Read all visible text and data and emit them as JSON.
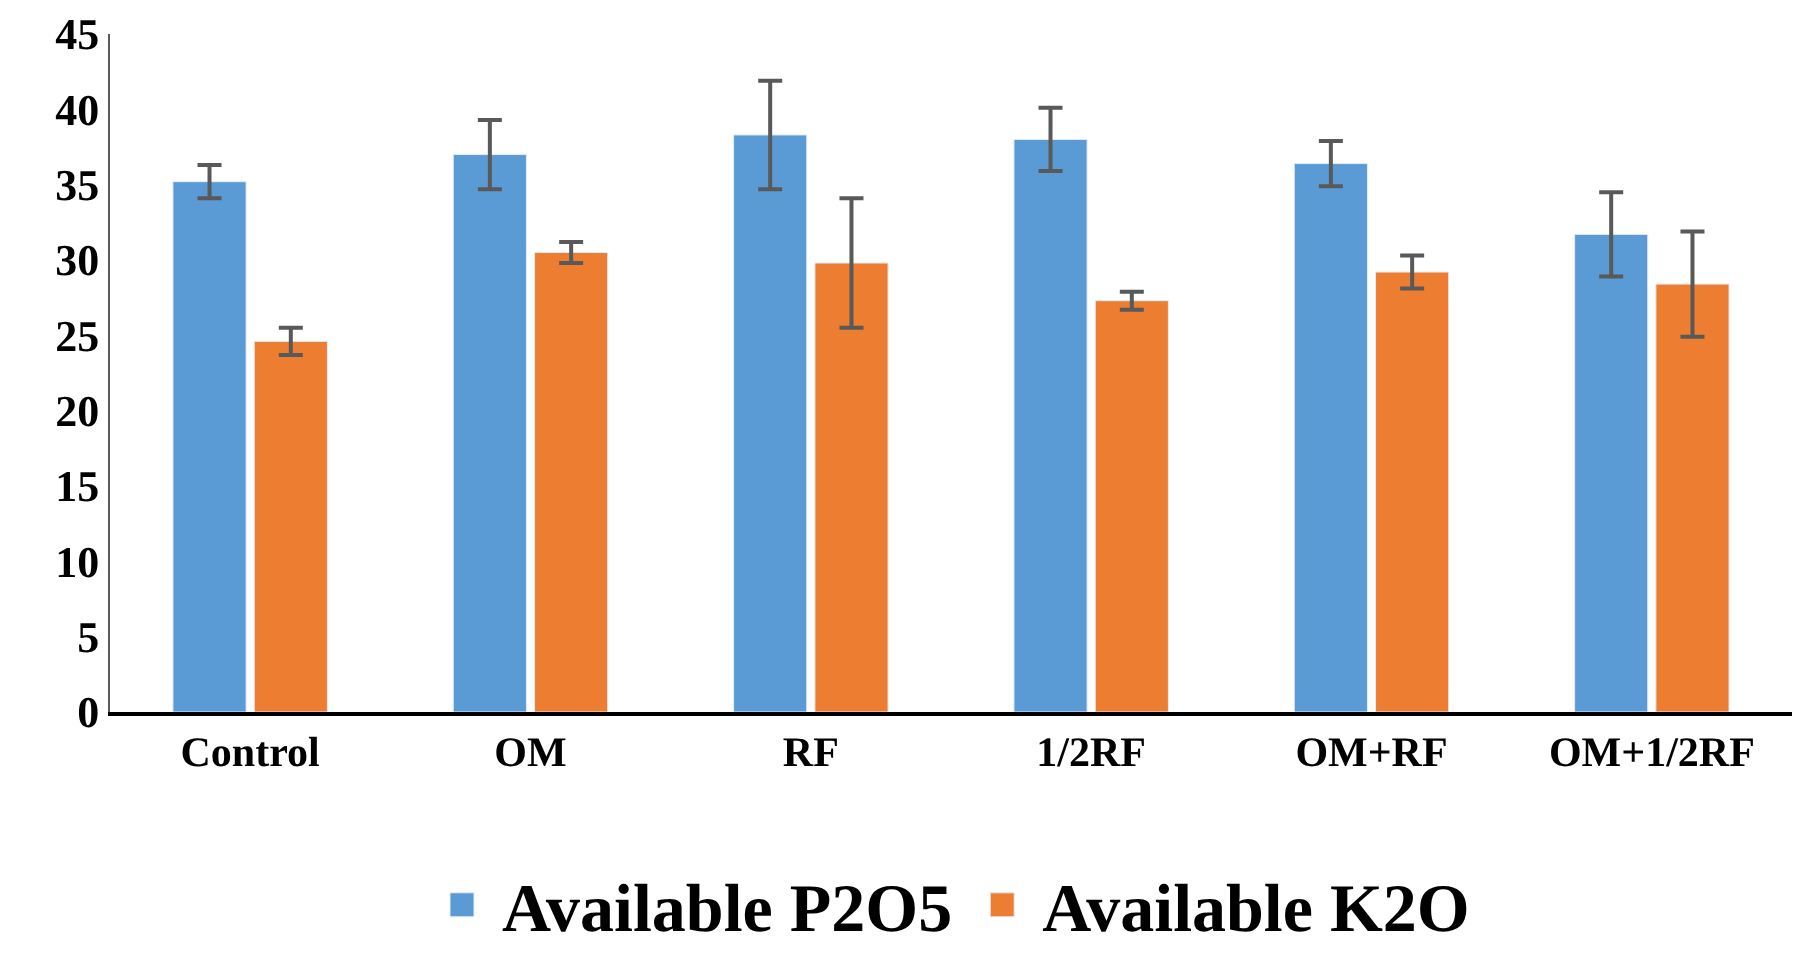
{
  "chart_data": {
    "type": "bar",
    "categories": [
      "Control",
      "OM",
      "RF",
      "1/2RF",
      "OM+RF",
      "OM+1/2RF"
    ],
    "series": [
      {
        "name": "Available P2O5",
        "color": "#5b9bd5",
        "values": [
          35.2,
          37.0,
          38.3,
          38.0,
          36.4,
          31.7
        ],
        "errors": [
          1.1,
          2.3,
          3.6,
          2.1,
          1.5,
          2.8
        ]
      },
      {
        "name": "Available K2O",
        "color": "#ed7d31",
        "values": [
          24.6,
          30.5,
          29.8,
          27.3,
          29.2,
          28.4
        ],
        "errors": [
          0.9,
          0.7,
          4.3,
          0.6,
          1.1,
          3.5
        ]
      }
    ],
    "ylim": [
      0,
      45
    ],
    "yticks": [
      0,
      5,
      10,
      15,
      20,
      25,
      30,
      35,
      40,
      45
    ],
    "legend": "bottom"
  }
}
